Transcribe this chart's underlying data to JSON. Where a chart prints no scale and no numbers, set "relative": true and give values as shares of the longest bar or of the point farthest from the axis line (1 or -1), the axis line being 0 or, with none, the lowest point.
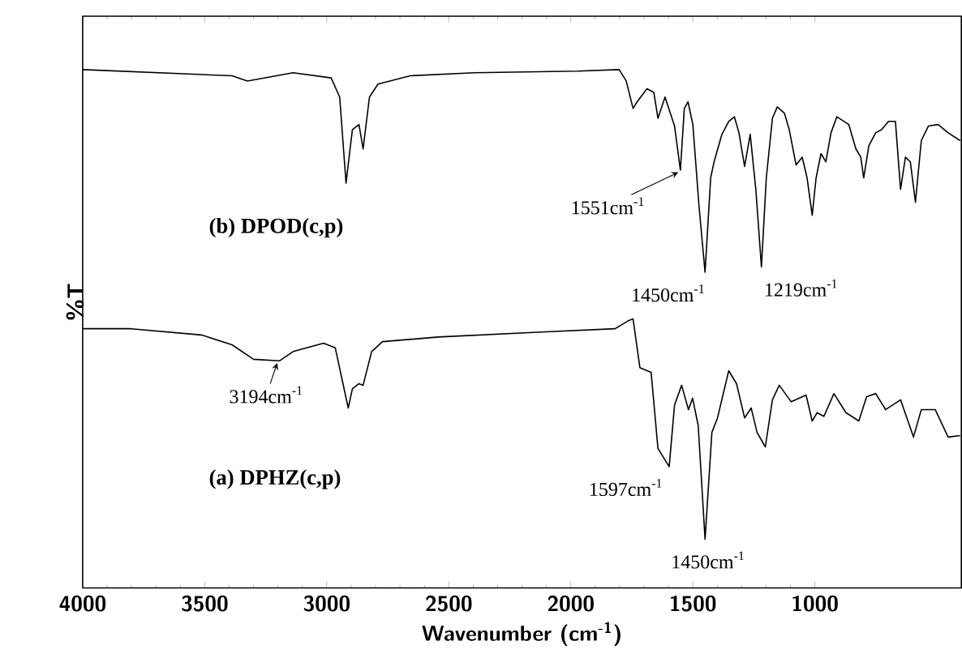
{
  "chart_data": {
    "type": "line",
    "xlabel": "Wavenumber (cm$^{-1}$)",
    "ylabel": "%T",
    "relative": true,
    "xlim": [
      4000,
      400
    ],
    "xticks": [
      4000,
      3500,
      3000,
      2500,
      2000,
      1500,
      1000
    ],
    "series": [
      {
        "name": "(b) DPOD(c,p)",
        "color": "#000000",
        "x": [
          4000,
          3388,
          3325,
          3138,
          2982,
          2947,
          2921,
          2895,
          2868,
          2851,
          2825,
          2790,
          2658,
          2395,
          1972,
          1802,
          1773,
          1745,
          1728,
          1688,
          1660,
          1643,
          1614,
          1575,
          1551,
          1535,
          1520,
          1500,
          1475,
          1450,
          1427,
          1413,
          1381,
          1353,
          1330,
          1311,
          1288,
          1265,
          1242,
          1219,
          1199,
          1174,
          1154,
          1125,
          1105,
          1077,
          1052,
          1032,
          1011,
          995,
          975,
          955,
          934,
          910,
          861,
          832,
          812,
          800,
          779,
          751,
          727,
          698,
          670,
          649,
          629,
          609,
          588,
          564,
          535,
          495,
          454,
          405
        ],
        "values": [
          1.0,
          0.988,
          0.978,
          0.994,
          0.984,
          0.947,
          0.781,
          0.884,
          0.894,
          0.847,
          0.947,
          0.972,
          0.988,
          0.994,
          0.997,
          1.0,
          0.978,
          0.925,
          0.938,
          0.963,
          0.956,
          0.906,
          0.947,
          0.891,
          0.806,
          0.925,
          0.938,
          0.894,
          0.738,
          0.609,
          0.791,
          0.822,
          0.875,
          0.9,
          0.909,
          0.878,
          0.813,
          0.875,
          0.769,
          0.619,
          0.791,
          0.906,
          0.928,
          0.916,
          0.884,
          0.816,
          0.831,
          0.791,
          0.719,
          0.791,
          0.838,
          0.822,
          0.878,
          0.909,
          0.894,
          0.847,
          0.831,
          0.791,
          0.853,
          0.878,
          0.884,
          0.9,
          0.9,
          0.769,
          0.831,
          0.822,
          0.744,
          0.863,
          0.891,
          0.894,
          0.878,
          0.863
        ]
      },
      {
        "name": "(a) DPHZ(c,p)",
        "color": "#000000",
        "x": [
          4000,
          3800,
          3513,
          3388,
          3300,
          3194,
          3138,
          3013,
          2965,
          2939,
          2912,
          2895,
          2868,
          2851,
          2816,
          2772,
          2544,
          2105,
          1819,
          1762,
          1745,
          1717,
          1671,
          1643,
          1597,
          1575,
          1546,
          1518,
          1501,
          1478,
          1450,
          1422,
          1399,
          1353,
          1321,
          1288,
          1261,
          1237,
          1203,
          1174,
          1146,
          1097,
          1036,
          1011,
          991,
          963,
          922,
          873,
          849,
          820,
          788,
          751,
          710,
          649,
          596,
          564,
          507,
          454,
          405
        ],
        "values": [
          0.5,
          0.5,
          0.488,
          0.469,
          0.441,
          0.438,
          0.456,
          0.472,
          0.463,
          0.406,
          0.347,
          0.384,
          0.394,
          0.391,
          0.456,
          0.475,
          0.484,
          0.494,
          0.5,
          0.516,
          0.519,
          0.425,
          0.416,
          0.269,
          0.234,
          0.353,
          0.391,
          0.344,
          0.366,
          0.313,
          0.094,
          0.3,
          0.328,
          0.419,
          0.394,
          0.328,
          0.347,
          0.3,
          0.272,
          0.363,
          0.391,
          0.359,
          0.372,
          0.322,
          0.338,
          0.331,
          0.375,
          0.338,
          0.331,
          0.322,
          0.369,
          0.375,
          0.344,
          0.363,
          0.291,
          0.344,
          0.344,
          0.291,
          0.294
        ]
      }
    ],
    "annotations": [
      {
        "text": "1551cm$^{-1}$",
        "x": 1551,
        "y": 0.806
      },
      {
        "text": "1450cm$^{-1}$",
        "x": 1450,
        "y": 0.609
      },
      {
        "text": "1219cm$^{-1}$",
        "x": 1219,
        "y": 0.619
      },
      {
        "text": "3194cm$^{-1}$",
        "x": 3194,
        "y": 0.438
      },
      {
        "text": "1597cm$^{-1}$",
        "x": 1597,
        "y": 0.234
      },
      {
        "text": "1450cm$^{-1}$",
        "x": 1450,
        "y": 0.094
      }
    ]
  }
}
